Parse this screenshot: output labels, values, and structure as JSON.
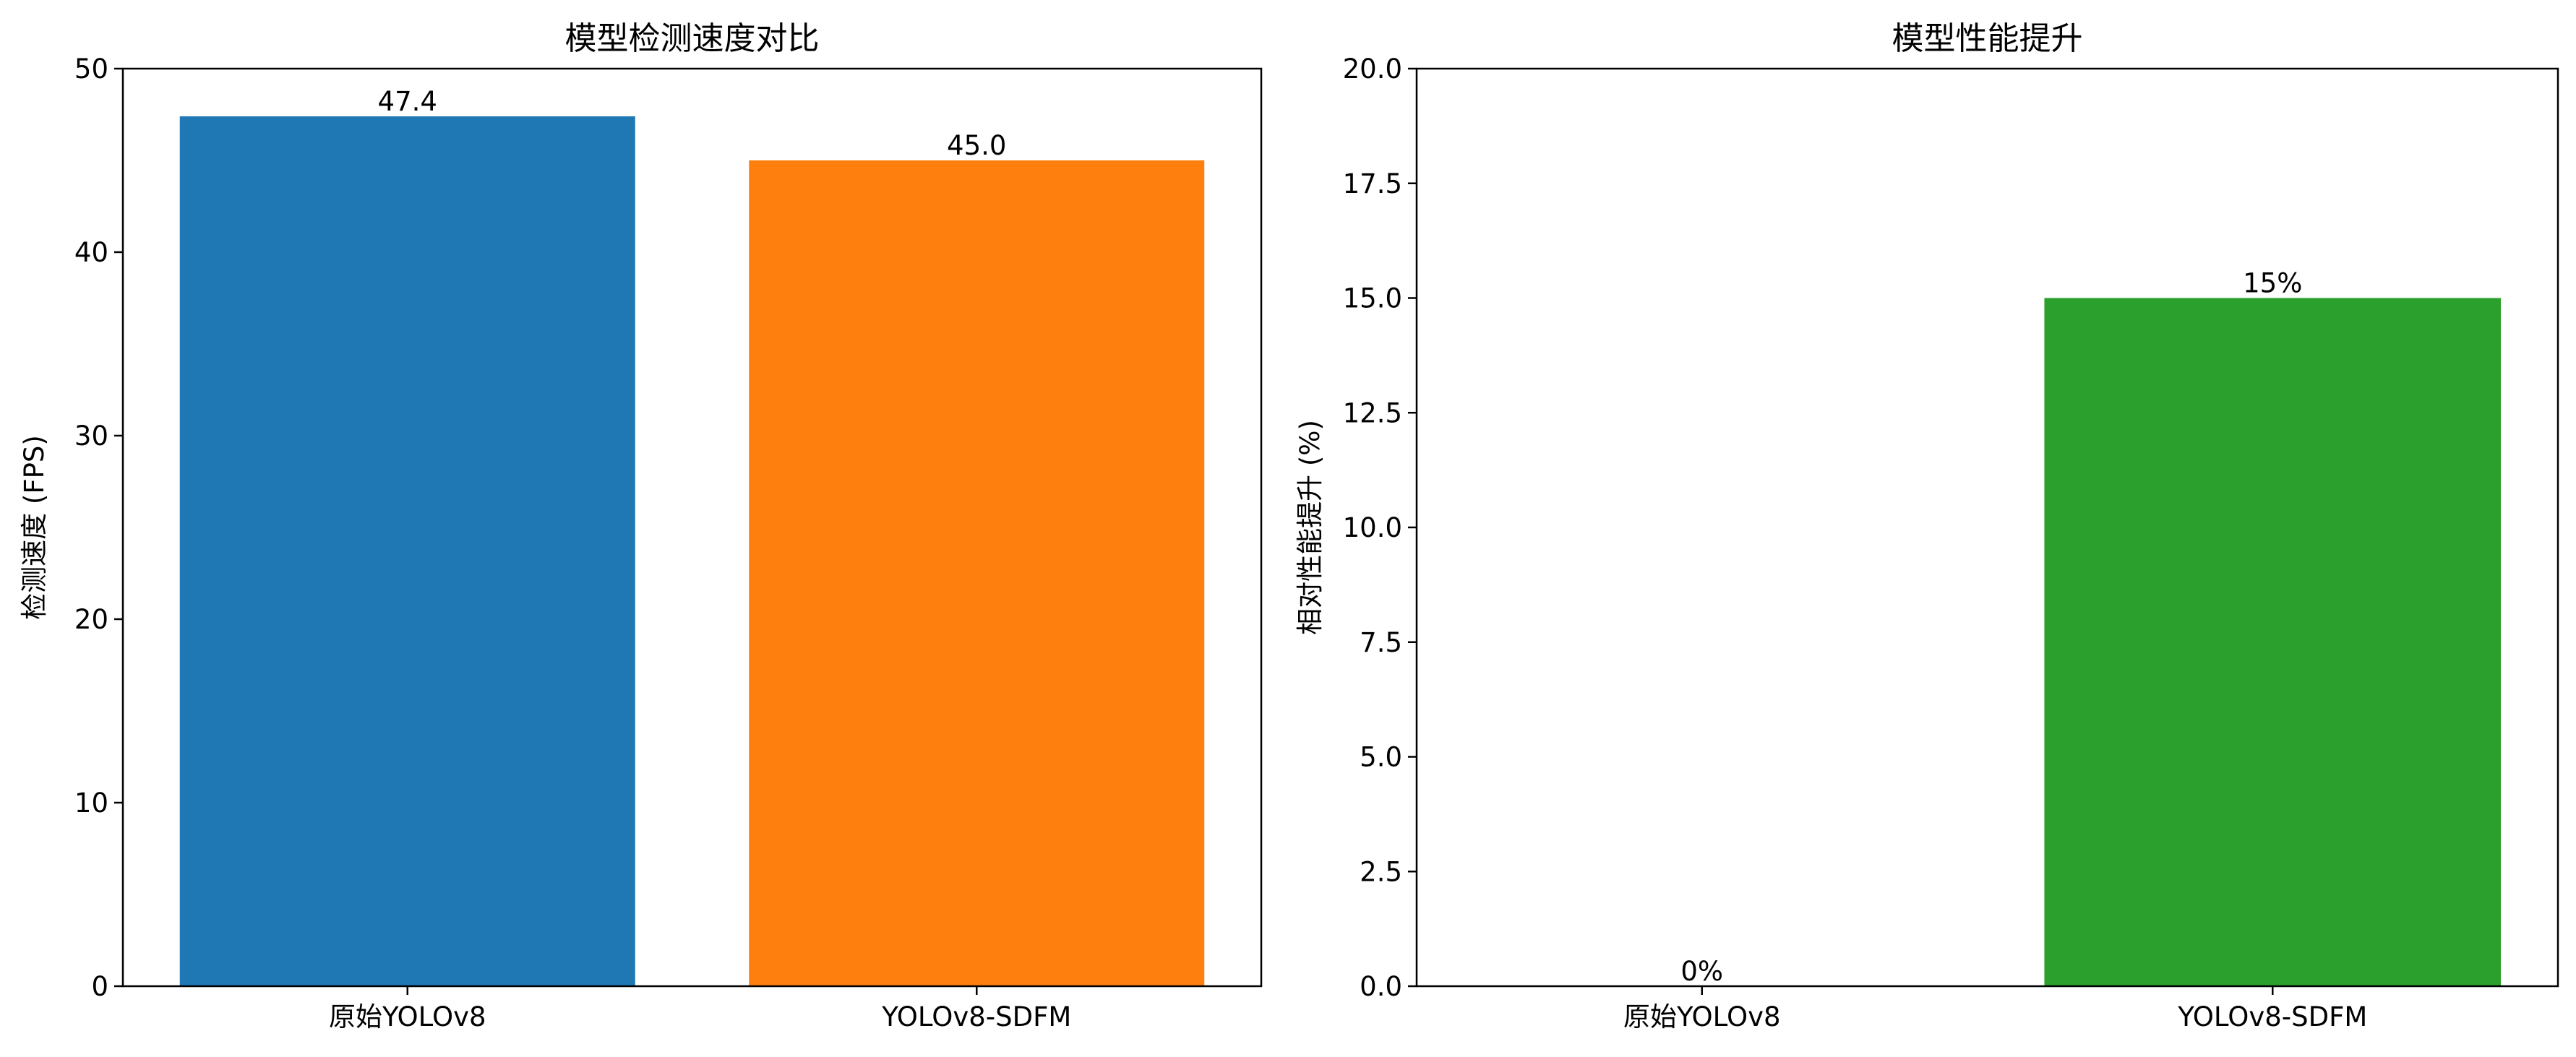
{
  "chart_data": [
    {
      "type": "bar",
      "title": "模型检测速度对比",
      "xlabel": "",
      "ylabel": "检测速度 (FPS)",
      "categories": [
        "原始YOLOv8",
        "YOLOv8-SDFM"
      ],
      "values": [
        47.4,
        45.0
      ],
      "data_labels": [
        "47.4",
        "45.0"
      ],
      "colors": [
        "#1f77b4",
        "#ff7f0e"
      ],
      "ylim": [
        0,
        50
      ],
      "yticks": [
        0,
        10,
        20,
        30,
        40,
        50
      ],
      "ytick_labels": [
        "0",
        "10",
        "20",
        "30",
        "40",
        "50"
      ],
      "grid": false,
      "legend": "none"
    },
    {
      "type": "bar",
      "title": "模型性能提升",
      "xlabel": "",
      "ylabel": "相对性能提升 (%)",
      "categories": [
        "原始YOLOv8",
        "YOLOv8-SDFM"
      ],
      "values": [
        0,
        15
      ],
      "data_labels": [
        "0%",
        "15%"
      ],
      "colors": [
        "#2ca02c",
        "#2ca02c"
      ],
      "ylim": [
        0,
        20
      ],
      "yticks": [
        0,
        2.5,
        5,
        7.5,
        10,
        12.5,
        15,
        17.5,
        20
      ],
      "ytick_labels": [
        "0.0",
        "2.5",
        "5.0",
        "7.5",
        "10.0",
        "12.5",
        "15.0",
        "17.5",
        "20.0"
      ],
      "grid": false,
      "legend": "none"
    }
  ]
}
